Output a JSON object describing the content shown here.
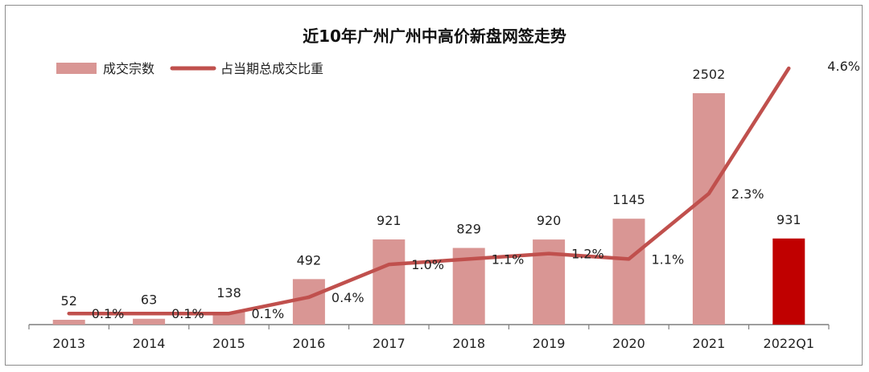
{
  "chart_data": {
    "type": "bar+line",
    "title": "近10年广州广州中高价新盘网签走势",
    "categories": [
      "2013",
      "2014",
      "2015",
      "2016",
      "2017",
      "2018",
      "2019",
      "2020",
      "2021",
      "2022Q1"
    ],
    "series": [
      {
        "name": "成交宗数",
        "type": "bar",
        "values": [
          52,
          63,
          138,
          492,
          921,
          829,
          920,
          1145,
          2502,
          931
        ],
        "labels": [
          "52",
          "63",
          "138",
          "492",
          "921",
          "829",
          "920",
          "1145",
          "2502",
          "931"
        ],
        "color": "#d99694",
        "highlight_color": "#c00000",
        "highlight_index": 9
      },
      {
        "name": "占当期总成交比重",
        "type": "line",
        "values": [
          0.1,
          0.1,
          0.1,
          0.4,
          1.0,
          1.1,
          1.2,
          1.1,
          2.3,
          4.6
        ],
        "labels": [
          "0.1%",
          "0.1%",
          "0.1%",
          "0.4%",
          "1.0%",
          "1.1%",
          "1.2%",
          "1.1%",
          "2.3%",
          "4.6%"
        ],
        "color": "#c0504d"
      }
    ],
    "y_bar_range": [
      0,
      2502
    ],
    "y_line_range": [
      0,
      4.6
    ],
    "legend_position": "top-left",
    "grid": false
  }
}
